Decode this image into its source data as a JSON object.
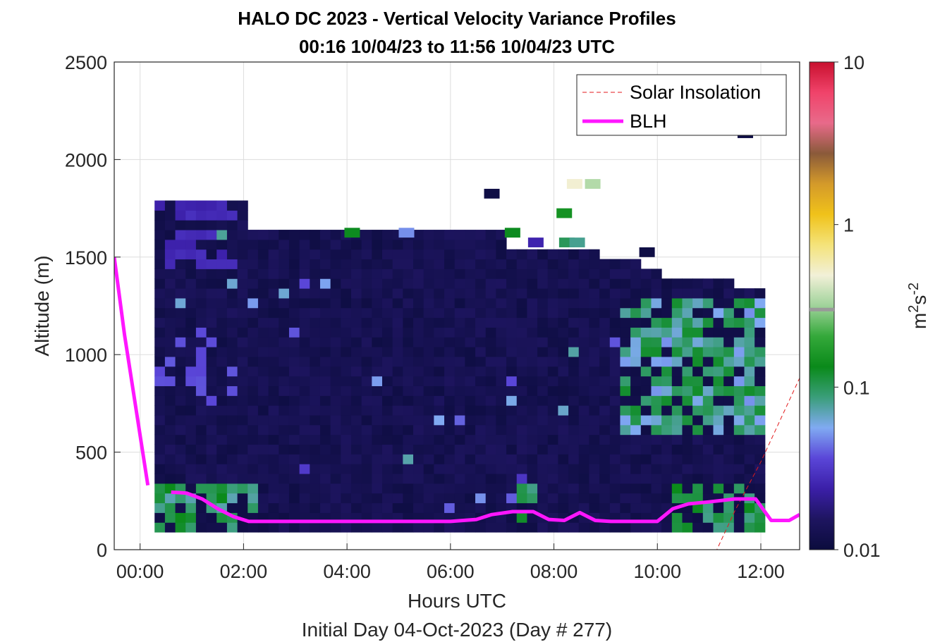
{
  "chart_data": {
    "type": "heatmap",
    "title": "HALO DC 2023 - Vertical Velocity Variance Profiles",
    "subtitle": "00:16 10/04/23 to 11:56 10/04/23  UTC",
    "xlabel": "Hours UTC",
    "xlabel2": "Initial Day 04-Oct-2023 (Day # 277)",
    "ylabel": "Altitude (m)",
    "xlim": [
      -0.5,
      12.75
    ],
    "ylim": [
      0,
      2500
    ],
    "xticks": [
      0,
      2,
      4,
      6,
      8,
      10,
      12
    ],
    "xtick_labels": [
      "00:00",
      "02:00",
      "04:00",
      "06:00",
      "08:00",
      "10:00",
      "12:00"
    ],
    "yticks": [
      0,
      500,
      1000,
      1500,
      2000,
      2500
    ],
    "ytick_labels": [
      "0",
      "500",
      "1000",
      "1500",
      "2000",
      "2500"
    ],
    "grid": true,
    "legend": {
      "placement": "top-right",
      "entries": [
        "Solar Insolation",
        "BLH"
      ]
    },
    "colorbar": {
      "scale": "log",
      "range": [
        0.01,
        10
      ],
      "ticks": [
        0.01,
        0.1,
        1,
        10
      ],
      "tick_labels": [
        "0.01",
        "0.1",
        "1",
        "10"
      ],
      "label": "m2s-2",
      "label_base": "m",
      "label_sup1": "2",
      "label_mid": "s",
      "label_sup2": "-2",
      "colors": [
        "#0b0c3d",
        "#1e1560",
        "#3b1fa8",
        "#5a46d8",
        "#80aaf2",
        "#3a9e7a",
        "#0a8a1a",
        "#34a83a",
        "#9fd39a",
        "#f2f0d8",
        "#f4e37a",
        "#f0c21a",
        "#d49a2a",
        "#8a5a3a",
        "#e86a8a",
        "#f0436a",
        "#c8102e"
      ],
      "marker_value": 0.3
    },
    "heatmap_extent": {
      "x_start": 0.28,
      "x_end": 12.0,
      "dx": 0.2,
      "y_bottom": 90,
      "y_top": 1770,
      "dy": 50
    },
    "solar_insolation": {
      "color": "#e31a1c",
      "x": [
        -0.5,
        11.15,
        11.5,
        12.0,
        12.75
      ],
      "y": [
        0,
        0,
        200,
        450,
        880
      ]
    },
    "blh": {
      "color": "#ff16ff",
      "segments": [
        {
          "x": [
            -0.5,
            -0.3,
            0.15
          ],
          "y": [
            1500,
            1100,
            330
          ]
        },
        {
          "x": [
            0.6,
            0.9,
            1.2,
            1.5,
            1.8,
            2.1,
            2.5,
            3.0,
            4.0,
            5.0,
            6.0,
            6.5,
            6.8,
            7.2,
            7.6,
            7.9,
            8.2,
            8.5,
            8.8,
            9.1,
            9.5,
            10.0,
            10.3,
            10.6,
            11.0,
            11.5,
            11.9,
            12.2,
            12.55,
            12.75
          ],
          "y": [
            295,
            290,
            260,
            210,
            170,
            145,
            145,
            145,
            145,
            145,
            145,
            155,
            180,
            195,
            195,
            155,
            150,
            190,
            150,
            145,
            145,
            145,
            210,
            235,
            245,
            260,
            260,
            150,
            150,
            180
          ]
        }
      ]
    }
  }
}
